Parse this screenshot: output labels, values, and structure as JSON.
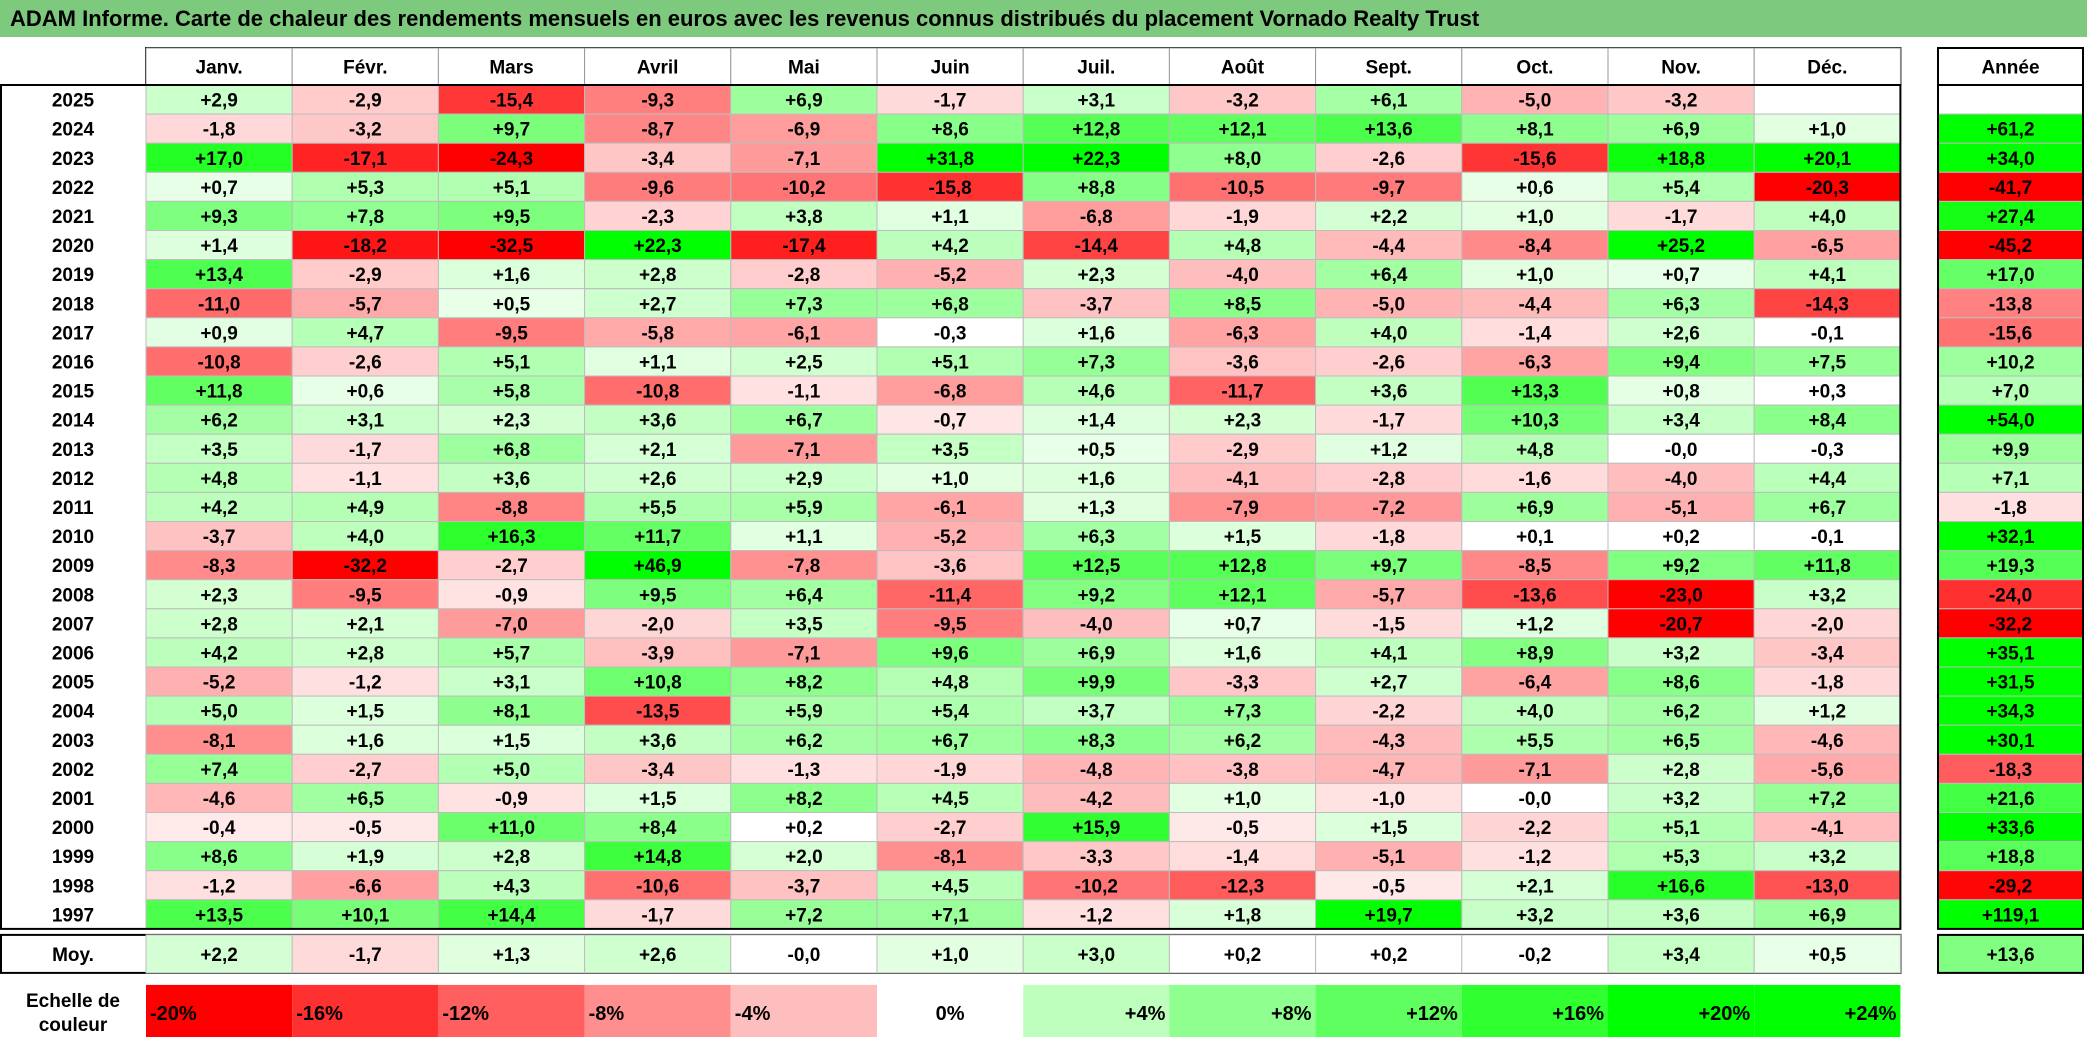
{
  "title": "ADAM Informe. Carte de chaleur des rendements mensuels en euros avec les revenus connus distribués du placement Vornado Realty Trust",
  "chart_data": {
    "type": "heatmap",
    "title": "ADAM Informe. Carte de chaleur des rendements mensuels en euros avec les revenus connus distribués du placement Vornado Realty Trust",
    "months": [
      "Janv.",
      "Févr.",
      "Mars",
      "Avril",
      "Mai",
      "Juin",
      "Juil.",
      "Août",
      "Sept.",
      "Oct.",
      "Nov.",
      "Déc."
    ],
    "year_header": "Année",
    "rows": [
      {
        "year": "2025",
        "values": [
          "+2,9",
          "-2,9",
          "-15,4",
          "-9,3",
          "+6,9",
          "-1,7",
          "+3,1",
          "-3,2",
          "+6,1",
          "-5,0",
          "-3,2",
          ""
        ],
        "annual": ""
      },
      {
        "year": "2024",
        "values": [
          "-1,8",
          "-3,2",
          "+9,7",
          "-8,7",
          "-6,9",
          "+8,6",
          "+12,8",
          "+12,1",
          "+13,6",
          "+8,1",
          "+6,9",
          "+1,0"
        ],
        "annual": "+61,2"
      },
      {
        "year": "2023",
        "values": [
          "+17,0",
          "-17,1",
          "-24,3",
          "-3,4",
          "-7,1",
          "+31,8",
          "+22,3",
          "+8,0",
          "-2,6",
          "-15,6",
          "+18,8",
          "+20,1"
        ],
        "annual": "+34,0"
      },
      {
        "year": "2022",
        "values": [
          "+0,7",
          "+5,3",
          "+5,1",
          "-9,6",
          "-10,2",
          "-15,8",
          "+8,8",
          "-10,5",
          "-9,7",
          "+0,6",
          "+5,4",
          "-20,3"
        ],
        "annual": "-41,7"
      },
      {
        "year": "2021",
        "values": [
          "+9,3",
          "+7,8",
          "+9,5",
          "-2,3",
          "+3,8",
          "+1,1",
          "-6,8",
          "-1,9",
          "+2,2",
          "+1,0",
          "-1,7",
          "+4,0"
        ],
        "annual": "+27,4"
      },
      {
        "year": "2020",
        "values": [
          "+1,4",
          "-18,2",
          "-32,5",
          "+22,3",
          "-17,4",
          "+4,2",
          "-14,4",
          "+4,8",
          "-4,4",
          "-8,4",
          "+25,2",
          "-6,5"
        ],
        "annual": "-45,2"
      },
      {
        "year": "2019",
        "values": [
          "+13,4",
          "-2,9",
          "+1,6",
          "+2,8",
          "-2,8",
          "-5,2",
          "+2,3",
          "-4,0",
          "+6,4",
          "+1,0",
          "+0,7",
          "+4,1"
        ],
        "annual": "+17,0"
      },
      {
        "year": "2018",
        "values": [
          "-11,0",
          "-5,7",
          "+0,5",
          "+2,7",
          "+7,3",
          "+6,8",
          "-3,7",
          "+8,5",
          "-5,0",
          "-4,4",
          "+6,3",
          "-14,3"
        ],
        "annual": "-13,8"
      },
      {
        "year": "2017",
        "values": [
          "+0,9",
          "+4,7",
          "-9,5",
          "-5,8",
          "-6,1",
          "-0,3",
          "+1,6",
          "-6,3",
          "+4,0",
          "-1,4",
          "+2,6",
          "-0,1"
        ],
        "annual": "-15,6"
      },
      {
        "year": "2016",
        "values": [
          "-10,8",
          "-2,6",
          "+5,1",
          "+1,1",
          "+2,5",
          "+5,1",
          "+7,3",
          "-3,6",
          "-2,6",
          "-6,3",
          "+9,4",
          "+7,5"
        ],
        "annual": "+10,2"
      },
      {
        "year": "2015",
        "values": [
          "+11,8",
          "+0,6",
          "+5,8",
          "-10,8",
          "-1,1",
          "-6,8",
          "+4,6",
          "-11,7",
          "+3,6",
          "+13,3",
          "+0,8",
          "+0,3"
        ],
        "annual": "+7,0"
      },
      {
        "year": "2014",
        "values": [
          "+6,2",
          "+3,1",
          "+2,3",
          "+3,6",
          "+6,7",
          "-0,7",
          "+1,4",
          "+2,3",
          "-1,7",
          "+10,3",
          "+3,4",
          "+8,4"
        ],
        "annual": "+54,0"
      },
      {
        "year": "2013",
        "values": [
          "+3,5",
          "-1,7",
          "+6,8",
          "+2,1",
          "-7,1",
          "+3,5",
          "+0,5",
          "-2,9",
          "+1,2",
          "+4,8",
          "-0,0",
          "-0,3"
        ],
        "annual": "+9,9"
      },
      {
        "year": "2012",
        "values": [
          "+4,8",
          "-1,1",
          "+3,6",
          "+2,6",
          "+2,9",
          "+1,0",
          "+1,6",
          "-4,1",
          "-2,8",
          "-1,6",
          "-4,0",
          "+4,4"
        ],
        "annual": "+7,1"
      },
      {
        "year": "2011",
        "values": [
          "+4,2",
          "+4,9",
          "-8,8",
          "+5,5",
          "+5,9",
          "-6,1",
          "+1,3",
          "-7,9",
          "-7,2",
          "+6,9",
          "-5,1",
          "+6,7"
        ],
        "annual": "-1,8"
      },
      {
        "year": "2010",
        "values": [
          "-3,7",
          "+4,0",
          "+16,3",
          "+11,7",
          "+1,1",
          "-5,2",
          "+6,3",
          "+1,5",
          "-1,8",
          "+0,1",
          "+0,2",
          "-0,1"
        ],
        "annual": "+32,1"
      },
      {
        "year": "2009",
        "values": [
          "-8,3",
          "-32,2",
          "-2,7",
          "+46,9",
          "-7,8",
          "-3,6",
          "+12,5",
          "+12,8",
          "+9,7",
          "-8,5",
          "+9,2",
          "+11,8"
        ],
        "annual": "+19,3"
      },
      {
        "year": "2008",
        "values": [
          "+2,3",
          "-9,5",
          "-0,9",
          "+9,5",
          "+6,4",
          "-11,4",
          "+9,2",
          "+12,1",
          "-5,7",
          "-13,6",
          "-23,0",
          "+3,2"
        ],
        "annual": "-24,0"
      },
      {
        "year": "2007",
        "values": [
          "+2,8",
          "+2,1",
          "-7,0",
          "-2,0",
          "+3,5",
          "-9,5",
          "-4,0",
          "+0,7",
          "-1,5",
          "+1,2",
          "-20,7",
          "-2,0"
        ],
        "annual": "-32,2"
      },
      {
        "year": "2006",
        "values": [
          "+4,2",
          "+2,8",
          "+5,7",
          "-3,9",
          "-7,1",
          "+9,6",
          "+6,9",
          "+1,6",
          "+4,1",
          "+8,9",
          "+3,2",
          "-3,4"
        ],
        "annual": "+35,1"
      },
      {
        "year": "2005",
        "values": [
          "-5,2",
          "-1,2",
          "+3,1",
          "+10,8",
          "+8,2",
          "+4,8",
          "+9,9",
          "-3,3",
          "+2,7",
          "-6,4",
          "+8,6",
          "-1,8"
        ],
        "annual": "+31,5"
      },
      {
        "year": "2004",
        "values": [
          "+5,0",
          "+1,5",
          "+8,1",
          "-13,5",
          "+5,9",
          "+5,4",
          "+3,7",
          "+7,3",
          "-2,2",
          "+4,0",
          "+6,2",
          "+1,2"
        ],
        "annual": "+34,3"
      },
      {
        "year": "2003",
        "values": [
          "-8,1",
          "+1,6",
          "+1,5",
          "+3,6",
          "+6,2",
          "+6,7",
          "+8,3",
          "+6,2",
          "-4,3",
          "+5,5",
          "+6,5",
          "-4,6"
        ],
        "annual": "+30,1"
      },
      {
        "year": "2002",
        "values": [
          "+7,4",
          "-2,7",
          "+5,0",
          "-3,4",
          "-1,3",
          "-1,9",
          "-4,8",
          "-3,8",
          "-4,7",
          "-7,1",
          "+2,8",
          "-5,6"
        ],
        "annual": "-18,3"
      },
      {
        "year": "2001",
        "values": [
          "-4,6",
          "+6,5",
          "-0,9",
          "+1,5",
          "+8,2",
          "+4,5",
          "-4,2",
          "+1,0",
          "-1,0",
          "-0,0",
          "+3,2",
          "+7,2"
        ],
        "annual": "+21,6"
      },
      {
        "year": "2000",
        "values": [
          "-0,4",
          "-0,5",
          "+11,0",
          "+8,4",
          "+0,2",
          "-2,7",
          "+15,9",
          "-0,5",
          "+1,5",
          "-2,2",
          "+5,1",
          "-4,1"
        ],
        "annual": "+33,6"
      },
      {
        "year": "1999",
        "values": [
          "+8,6",
          "+1,9",
          "+2,8",
          "+14,8",
          "+2,0",
          "-8,1",
          "-3,3",
          "-1,4",
          "-5,1",
          "-1,2",
          "+5,3",
          "+3,2"
        ],
        "annual": "+18,8"
      },
      {
        "year": "1998",
        "values": [
          "-1,2",
          "-6,6",
          "+4,3",
          "-10,6",
          "-3,7",
          "+4,5",
          "-10,2",
          "-12,3",
          "-0,5",
          "+2,1",
          "+16,6",
          "-13,0"
        ],
        "annual": "-29,2"
      },
      {
        "year": "1997",
        "values": [
          "+13,5",
          "+10,1",
          "+14,4",
          "-1,7",
          "+7,2",
          "+7,1",
          "-1,2",
          "+1,8",
          "+19,7",
          "+3,2",
          "+3,6",
          "+6,9"
        ],
        "annual": "+119,1"
      }
    ],
    "average": {
      "label": "Moy.",
      "values": [
        "+2,2",
        "-1,7",
        "+1,3",
        "+2,6",
        "-0,0",
        "+1,0",
        "+3,0",
        "+0,2",
        "+0,2",
        "-0,2",
        "+3,4",
        "+0,5"
      ],
      "annual": "+13,6"
    },
    "color_scale": {
      "label_line1": "Echelle de",
      "label_line2": "couleur",
      "stops": [
        "-20%",
        "-16%",
        "-12%",
        "-8%",
        "-4%",
        "0%",
        "+4%",
        "+8%",
        "+12%",
        "+16%",
        "+20%",
        "+24%"
      ]
    },
    "colors": {
      "negative_max": "#ff0000",
      "neutral": "#ffffff",
      "positive_max": "#00ff00",
      "title_bar": "#7dc97d"
    }
  }
}
